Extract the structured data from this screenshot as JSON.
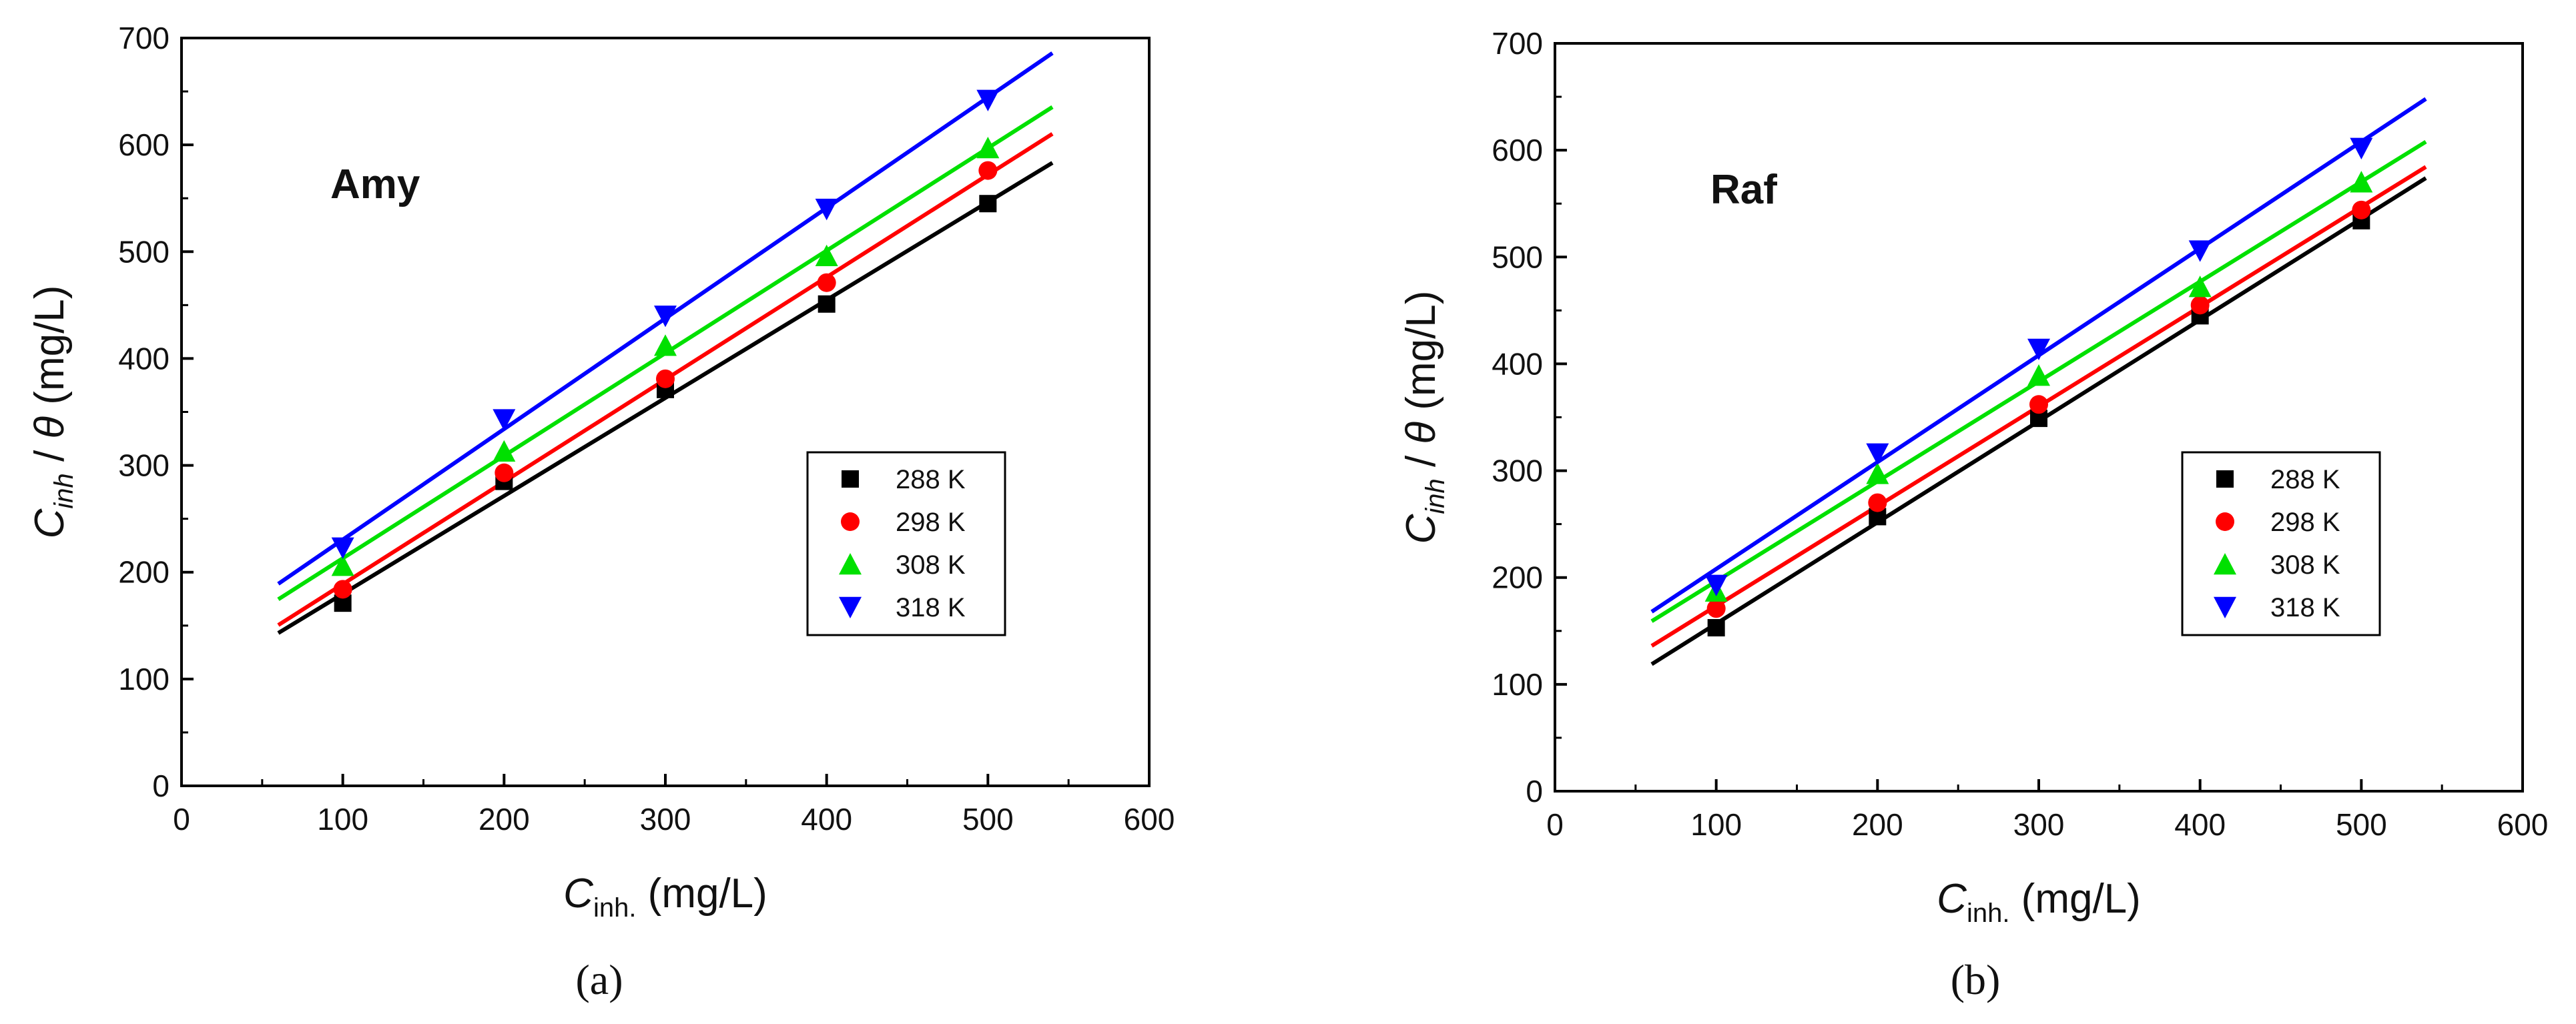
{
  "figure": {
    "captions": [
      "(a)",
      "(b)"
    ]
  },
  "chart_data": [
    {
      "type": "scatter",
      "title": "Amy",
      "xlabel": "Cinh. (mg/L)",
      "ylabel": "Cinh / θ (mg/L)",
      "xlim": [
        0,
        600
      ],
      "ylim": [
        0,
        700
      ],
      "xticks": [
        0,
        100,
        200,
        300,
        400,
        500,
        600
      ],
      "yticks": [
        0,
        100,
        200,
        300,
        400,
        500,
        600,
        700
      ],
      "fit_range": [
        60,
        540
      ],
      "legend_position": "right-middle",
      "series": [
        {
          "name": "288 K",
          "marker": "square",
          "color": "#000000",
          "x": [
            100,
            200,
            300,
            400,
            500
          ],
          "y": [
            171,
            285,
            371,
            451,
            545
          ],
          "fit": {
            "slope": 0.917,
            "intercept": 88
          }
        },
        {
          "name": "298 K",
          "marker": "circle",
          "color": "#ff0000",
          "x": [
            100,
            200,
            300,
            400,
            500
          ],
          "y": [
            184,
            293,
            381,
            471,
            576
          ],
          "fit": {
            "slope": 0.958,
            "intercept": 93
          }
        },
        {
          "name": "308 K",
          "marker": "triangle-up",
          "color": "#00e000",
          "x": [
            100,
            200,
            300,
            400,
            500
          ],
          "y": [
            206,
            313,
            412,
            496,
            597
          ],
          "fit": {
            "slope": 0.96,
            "intercept": 117
          }
        },
        {
          "name": "318 K",
          "marker": "triangle-down",
          "color": "#0000ff",
          "x": [
            100,
            200,
            300,
            400,
            500
          ],
          "y": [
            223,
            343,
            440,
            540,
            642
          ],
          "fit": {
            "slope": 1.035,
            "intercept": 127
          }
        }
      ]
    },
    {
      "type": "scatter",
      "title": "Raf",
      "xlabel": "Cinh. (mg/L)",
      "ylabel": "Cinh / θ (mg/L)",
      "xlim": [
        0,
        600
      ],
      "ylim": [
        0,
        700
      ],
      "xticks": [
        0,
        100,
        200,
        300,
        400,
        500,
        600
      ],
      "yticks": [
        0,
        100,
        200,
        300,
        400,
        500,
        600,
        700
      ],
      "fit_range": [
        60,
        540
      ],
      "legend_position": "right-middle",
      "series": [
        {
          "name": "288 K",
          "marker": "square",
          "color": "#000000",
          "x": [
            100,
            200,
            300,
            400,
            500
          ],
          "y": [
            153,
            257,
            349,
            445,
            534
          ],
          "fit": {
            "slope": 0.948,
            "intercept": 62
          }
        },
        {
          "name": "298 K",
          "marker": "circle",
          "color": "#ff0000",
          "x": [
            100,
            200,
            300,
            400,
            500
          ],
          "y": [
            171,
            270,
            362,
            455,
            544
          ],
          "fit": {
            "slope": 0.934,
            "intercept": 80
          }
        },
        {
          "name": "308 K",
          "marker": "triangle-up",
          "color": "#00e000",
          "x": [
            100,
            200,
            300,
            400,
            500
          ],
          "y": [
            187,
            297,
            389,
            472,
            570
          ],
          "fit": {
            "slope": 0.935,
            "intercept": 103
          }
        },
        {
          "name": "318 K",
          "marker": "triangle-down",
          "color": "#0000ff",
          "x": [
            100,
            200,
            300,
            400,
            500
          ],
          "y": [
            193,
            316,
            414,
            506,
            602
          ],
          "fit": {
            "slope": 1.0,
            "intercept": 108
          }
        }
      ]
    }
  ]
}
